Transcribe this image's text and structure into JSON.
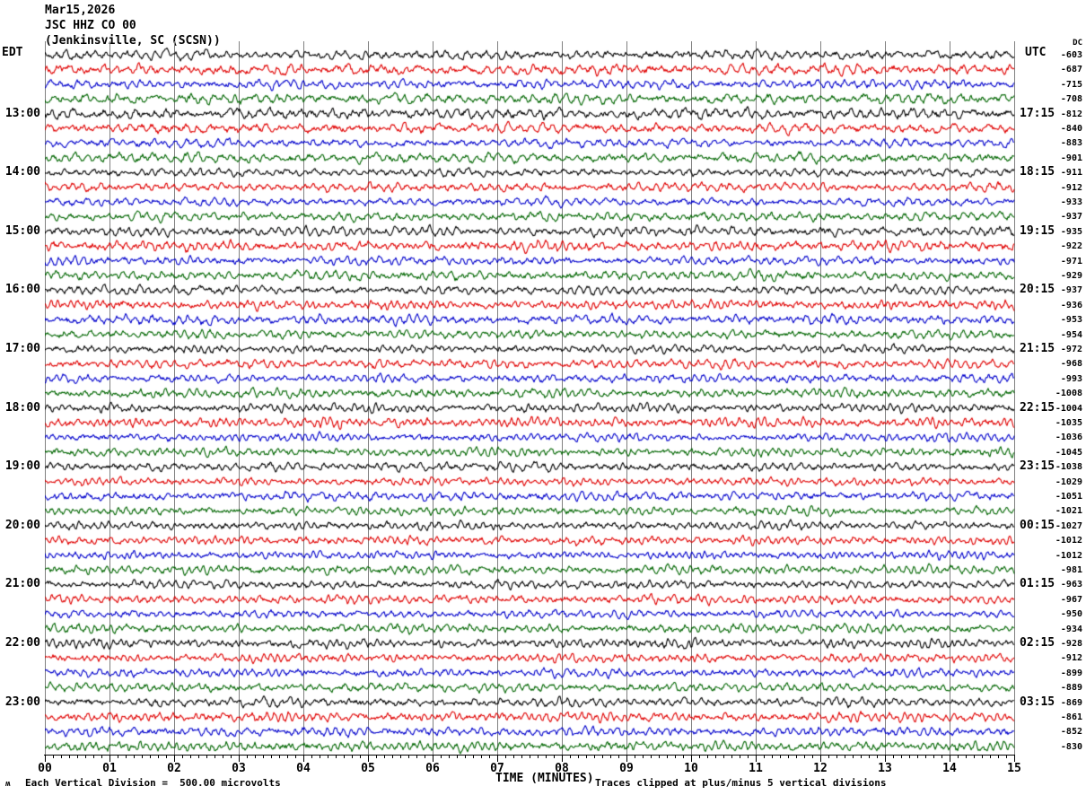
{
  "title": {
    "date": "Mar15,2026",
    "station": "JSC HHZ CO 00",
    "location": "(Jenkinsville, SC (SCSN))"
  },
  "axes": {
    "left_header": "EDT",
    "right_header": "UTC",
    "dc_header": "DC",
    "x_label": "TIME (MINUTES)",
    "x_ticks": [
      "00",
      "01",
      "02",
      "03",
      "04",
      "05",
      "06",
      "07",
      "08",
      "09",
      "10",
      "11",
      "12",
      "13",
      "14",
      "15"
    ]
  },
  "footer": {
    "scale_note": "Each Vertical Division =  500.00 microvolts",
    "clip_note": "Traces clipped at plus/minus 5 vertical divisions",
    "watermark": "ʍ"
  },
  "colors": {
    "trace_cycle": [
      "#000000",
      "#e00000",
      "#0000cc",
      "#006600"
    ],
    "gridline": "#808080",
    "background": "#ffffff",
    "text": "#000000"
  },
  "chart_data": {
    "type": "line",
    "kind": "seismogram-helicorder",
    "title": "JSC HHZ CO 00 (Jenkinsville, SC (SCSN)) Mar15,2026",
    "xlabel": "TIME (MINUTES)",
    "x_range_minutes": [
      0,
      15
    ],
    "major_tick_every_min": 1,
    "minor_ticks_per_minute": 7,
    "minutes_per_row": 15,
    "rows_per_hour": 4,
    "clip_divisions": 5,
    "microvolts_per_division": 500.0,
    "row_color_cycle": [
      "black",
      "red",
      "blue",
      "green"
    ],
    "rows": [
      {
        "color": 0,
        "edt": "",
        "utc": "",
        "dc": "-603",
        "amp": 5.5,
        "wl": 10,
        "seed": 101
      },
      {
        "color": 1,
        "edt": "",
        "utc": "",
        "dc": "-687",
        "amp": 6.2,
        "wl": 10,
        "seed": 138
      },
      {
        "color": 2,
        "edt": "",
        "utc": "",
        "dc": "-715",
        "amp": 5.2,
        "wl": 10,
        "seed": 175
      },
      {
        "color": 3,
        "edt": "",
        "utc": "",
        "dc": "-708",
        "amp": 6.0,
        "wl": 10,
        "seed": 212
      },
      {
        "color": 0,
        "edt": "13:00",
        "utc": "17:15",
        "dc": "-812",
        "amp": 6.2,
        "wl": 10,
        "seed": 249
      },
      {
        "color": 1,
        "edt": "",
        "utc": "",
        "dc": "-840",
        "amp": 5.8,
        "wl": 10,
        "seed": 286
      },
      {
        "color": 2,
        "edt": "",
        "utc": "",
        "dc": "-883",
        "amp": 5.0,
        "wl": 10,
        "seed": 323
      },
      {
        "color": 3,
        "edt": "",
        "utc": "",
        "dc": "-901",
        "amp": 5.6,
        "wl": 10,
        "seed": 360
      },
      {
        "color": 0,
        "edt": "14:00",
        "utc": "18:15",
        "dc": "-911",
        "amp": 4.6,
        "wl": 8,
        "seed": 397
      },
      {
        "color": 1,
        "edt": "",
        "utc": "",
        "dc": "-912",
        "amp": 5.0,
        "wl": 8,
        "seed": 434
      },
      {
        "color": 2,
        "edt": "",
        "utc": "",
        "dc": "-933",
        "amp": 4.6,
        "wl": 8,
        "seed": 471
      },
      {
        "color": 3,
        "edt": "",
        "utc": "",
        "dc": "-937",
        "amp": 5.2,
        "wl": 8,
        "seed": 508
      },
      {
        "color": 0,
        "edt": "15:00",
        "utc": "19:15",
        "dc": "-935",
        "amp": 5.6,
        "wl": 8,
        "seed": 545
      },
      {
        "color": 1,
        "edt": "",
        "utc": "",
        "dc": "-922",
        "amp": 6.0,
        "wl": 8,
        "seed": 582
      },
      {
        "color": 2,
        "edt": "",
        "utc": "",
        "dc": "-971",
        "amp": 5.0,
        "wl": 8,
        "seed": 619
      },
      {
        "color": 3,
        "edt": "",
        "utc": "",
        "dc": "-929",
        "amp": 5.4,
        "wl": 8,
        "seed": 656
      },
      {
        "color": 0,
        "edt": "16:00",
        "utc": "20:15",
        "dc": "-937",
        "amp": 4.8,
        "wl": 7,
        "seed": 693
      },
      {
        "color": 1,
        "edt": "",
        "utc": "",
        "dc": "-936",
        "amp": 5.2,
        "wl": 7,
        "seed": 730
      },
      {
        "color": 2,
        "edt": "",
        "utc": "",
        "dc": "-953",
        "amp": 5.6,
        "wl": 7,
        "seed": 767
      },
      {
        "color": 3,
        "edt": "",
        "utc": "",
        "dc": "-954",
        "amp": 5.0,
        "wl": 7,
        "seed": 804
      },
      {
        "color": 0,
        "edt": "17:00",
        "utc": "21:15",
        "dc": "-972",
        "amp": 4.6,
        "wl": 7,
        "seed": 841
      },
      {
        "color": 1,
        "edt": "",
        "utc": "",
        "dc": "-968",
        "amp": 5.2,
        "wl": 7,
        "seed": 878
      },
      {
        "color": 2,
        "edt": "",
        "utc": "",
        "dc": "-993",
        "amp": 4.8,
        "wl": 7,
        "seed": 915
      },
      {
        "color": 3,
        "edt": "",
        "utc": "",
        "dc": "-1008",
        "amp": 5.2,
        "wl": 7,
        "seed": 952
      },
      {
        "color": 0,
        "edt": "18:00",
        "utc": "22:15",
        "dc": "-1004",
        "amp": 5.0,
        "wl": 7,
        "seed": 989
      },
      {
        "color": 1,
        "edt": "",
        "utc": "",
        "dc": "-1035",
        "amp": 5.6,
        "wl": 7,
        "seed": 1026
      },
      {
        "color": 2,
        "edt": "",
        "utc": "",
        "dc": "-1036",
        "amp": 4.6,
        "wl": 7,
        "seed": 1063
      },
      {
        "color": 3,
        "edt": "",
        "utc": "",
        "dc": "-1045",
        "amp": 5.0,
        "wl": 7,
        "seed": 1100
      },
      {
        "color": 0,
        "edt": "19:00",
        "utc": "23:15",
        "dc": "-1038",
        "amp": 5.0,
        "wl": 7,
        "seed": 1137
      },
      {
        "color": 1,
        "edt": "",
        "utc": "",
        "dc": "-1029",
        "amp": 4.6,
        "wl": 7,
        "seed": 1174
      },
      {
        "color": 2,
        "edt": "",
        "utc": "",
        "dc": "-1051",
        "amp": 5.2,
        "wl": 7,
        "seed": 1211
      },
      {
        "color": 3,
        "edt": "",
        "utc": "",
        "dc": "-1021",
        "amp": 4.8,
        "wl": 7,
        "seed": 1248
      },
      {
        "color": 0,
        "edt": "20:00",
        "utc": "00:15",
        "dc": "-1027",
        "amp": 4.6,
        "wl": 7,
        "seed": 1285
      },
      {
        "color": 1,
        "edt": "",
        "utc": "",
        "dc": "-1012",
        "amp": 4.8,
        "wl": 7,
        "seed": 1322
      },
      {
        "color": 2,
        "edt": "",
        "utc": "",
        "dc": "-1012",
        "amp": 4.6,
        "wl": 7,
        "seed": 1359
      },
      {
        "color": 3,
        "edt": "",
        "utc": "",
        "dc": "-981",
        "amp": 5.0,
        "wl": 7,
        "seed": 1396
      },
      {
        "color": 0,
        "edt": "21:00",
        "utc": "01:15",
        "dc": "-963",
        "amp": 4.8,
        "wl": 7,
        "seed": 1433
      },
      {
        "color": 1,
        "edt": "",
        "utc": "",
        "dc": "-967",
        "amp": 5.2,
        "wl": 7,
        "seed": 1470
      },
      {
        "color": 2,
        "edt": "",
        "utc": "",
        "dc": "-950",
        "amp": 4.6,
        "wl": 7,
        "seed": 1507
      },
      {
        "color": 3,
        "edt": "",
        "utc": "",
        "dc": "-934",
        "amp": 5.0,
        "wl": 7,
        "seed": 1544
      },
      {
        "color": 0,
        "edt": "22:00",
        "utc": "02:15",
        "dc": "-928",
        "amp": 5.2,
        "wl": 7,
        "seed": 1581
      },
      {
        "color": 1,
        "edt": "",
        "utc": "",
        "dc": "-912",
        "amp": 5.0,
        "wl": 7,
        "seed": 1618
      },
      {
        "color": 2,
        "edt": "",
        "utc": "",
        "dc": "-899",
        "amp": 4.8,
        "wl": 7,
        "seed": 1655
      },
      {
        "color": 3,
        "edt": "",
        "utc": "",
        "dc": "-889",
        "amp": 5.0,
        "wl": 7,
        "seed": 1692
      },
      {
        "color": 0,
        "edt": "23:00",
        "utc": "03:15",
        "dc": "-869",
        "amp": 5.0,
        "wl": 7,
        "seed": 1729
      },
      {
        "color": 1,
        "edt": "",
        "utc": "",
        "dc": "-861",
        "amp": 5.6,
        "wl": 7,
        "seed": 1766
      },
      {
        "color": 2,
        "edt": "",
        "utc": "",
        "dc": "-852",
        "amp": 5.2,
        "wl": 7,
        "seed": 1803
      },
      {
        "color": 3,
        "edt": "",
        "utc": "",
        "dc": "-830",
        "amp": 5.6,
        "wl": 7,
        "seed": 1840
      }
    ]
  }
}
